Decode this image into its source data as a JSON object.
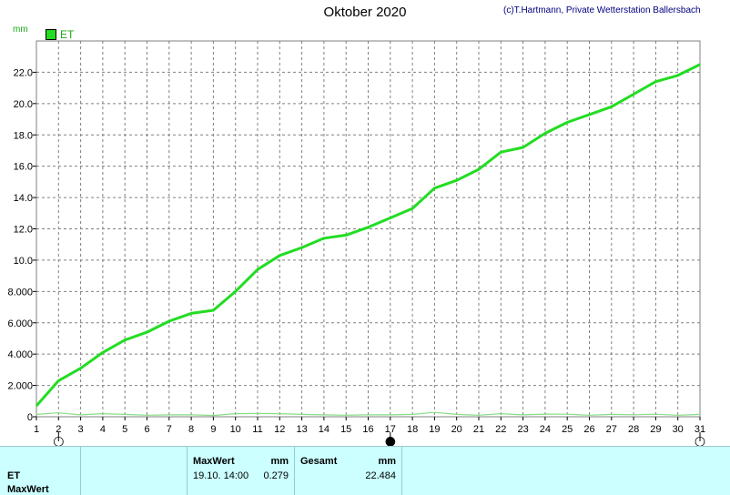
{
  "title": "Oktober 2020",
  "copyright": "(c)T.Hartmann, Private Wetterstation Ballersbach",
  "unit": "mm",
  "legend": {
    "label": "ET",
    "color": "#22dd22"
  },
  "moon_phases": [
    {
      "day": 2,
      "symbol": "○"
    },
    {
      "day": 17,
      "symbol": "●"
    },
    {
      "day": 31,
      "symbol": "○"
    }
  ],
  "chart_data": {
    "type": "line",
    "title": "Oktober 2020",
    "ylabel": "mm",
    "ylim": [
      0,
      24
    ],
    "xlim": [
      1,
      31
    ],
    "grid": true,
    "legend_position": "top-left",
    "x_ticks": [
      1,
      2,
      3,
      4,
      5,
      6,
      7,
      8,
      9,
      10,
      11,
      12,
      13,
      14,
      15,
      16,
      17,
      18,
      19,
      20,
      21,
      22,
      23,
      24,
      25,
      26,
      27,
      28,
      29,
      30,
      31
    ],
    "y_ticks": [
      {
        "value": 0,
        "label": "0"
      },
      {
        "value": 2,
        "label": "2.000"
      },
      {
        "value": 4,
        "label": "4.000"
      },
      {
        "value": 6,
        "label": "6.000"
      },
      {
        "value": 8,
        "label": "8.000"
      },
      {
        "value": 10,
        "label": "10.0"
      },
      {
        "value": 12,
        "label": "12.0"
      },
      {
        "value": 14,
        "label": "14.0"
      },
      {
        "value": 16,
        "label": "16.0"
      },
      {
        "value": 18,
        "label": "18.0"
      },
      {
        "value": 20,
        "label": "20.0"
      },
      {
        "value": 22,
        "label": "22.0"
      }
    ],
    "series": [
      {
        "name": "ET",
        "color": "#22dd22",
        "x": [
          1,
          2,
          3,
          4,
          5,
          6,
          7,
          8,
          9,
          10,
          11,
          12,
          13,
          14,
          15,
          16,
          17,
          18,
          19,
          20,
          21,
          22,
          23,
          24,
          25,
          26,
          27,
          28,
          29,
          30,
          31
        ],
        "y": [
          0.7,
          2.3,
          3.1,
          4.1,
          4.9,
          5.4,
          6.1,
          6.6,
          6.8,
          8.0,
          9.4,
          10.3,
          10.8,
          11.4,
          11.6,
          12.1,
          12.7,
          13.3,
          14.6,
          15.1,
          15.8,
          16.9,
          17.2,
          18.1,
          18.8,
          19.3,
          19.8,
          20.6,
          21.4,
          21.8,
          22.5
        ]
      },
      {
        "name": "ET MaxWert",
        "color": "#88dd88",
        "x": [
          1,
          2,
          3,
          4,
          5,
          6,
          7,
          8,
          9,
          10,
          11,
          12,
          13,
          14,
          15,
          16,
          17,
          18,
          19,
          20,
          21,
          22,
          23,
          24,
          25,
          26,
          27,
          28,
          29,
          30,
          31
        ],
        "y": [
          0.15,
          0.25,
          0.12,
          0.2,
          0.15,
          0.1,
          0.12,
          0.13,
          0.08,
          0.2,
          0.21,
          0.2,
          0.15,
          0.12,
          0.1,
          0.13,
          0.12,
          0.15,
          0.279,
          0.15,
          0.1,
          0.2,
          0.12,
          0.17,
          0.16,
          0.1,
          0.15,
          0.13,
          0.16,
          0.1,
          0.15
        ]
      }
    ]
  },
  "table": {
    "row_label_1": "ET",
    "row_label_2": "MaxWert",
    "max_header": "MaxWert",
    "max_unit": "mm",
    "max_datetime": "19.10.  14:00",
    "max_value": "0.279",
    "total_header": "Gesamt",
    "total_unit": "mm",
    "total_value": "22.484"
  }
}
